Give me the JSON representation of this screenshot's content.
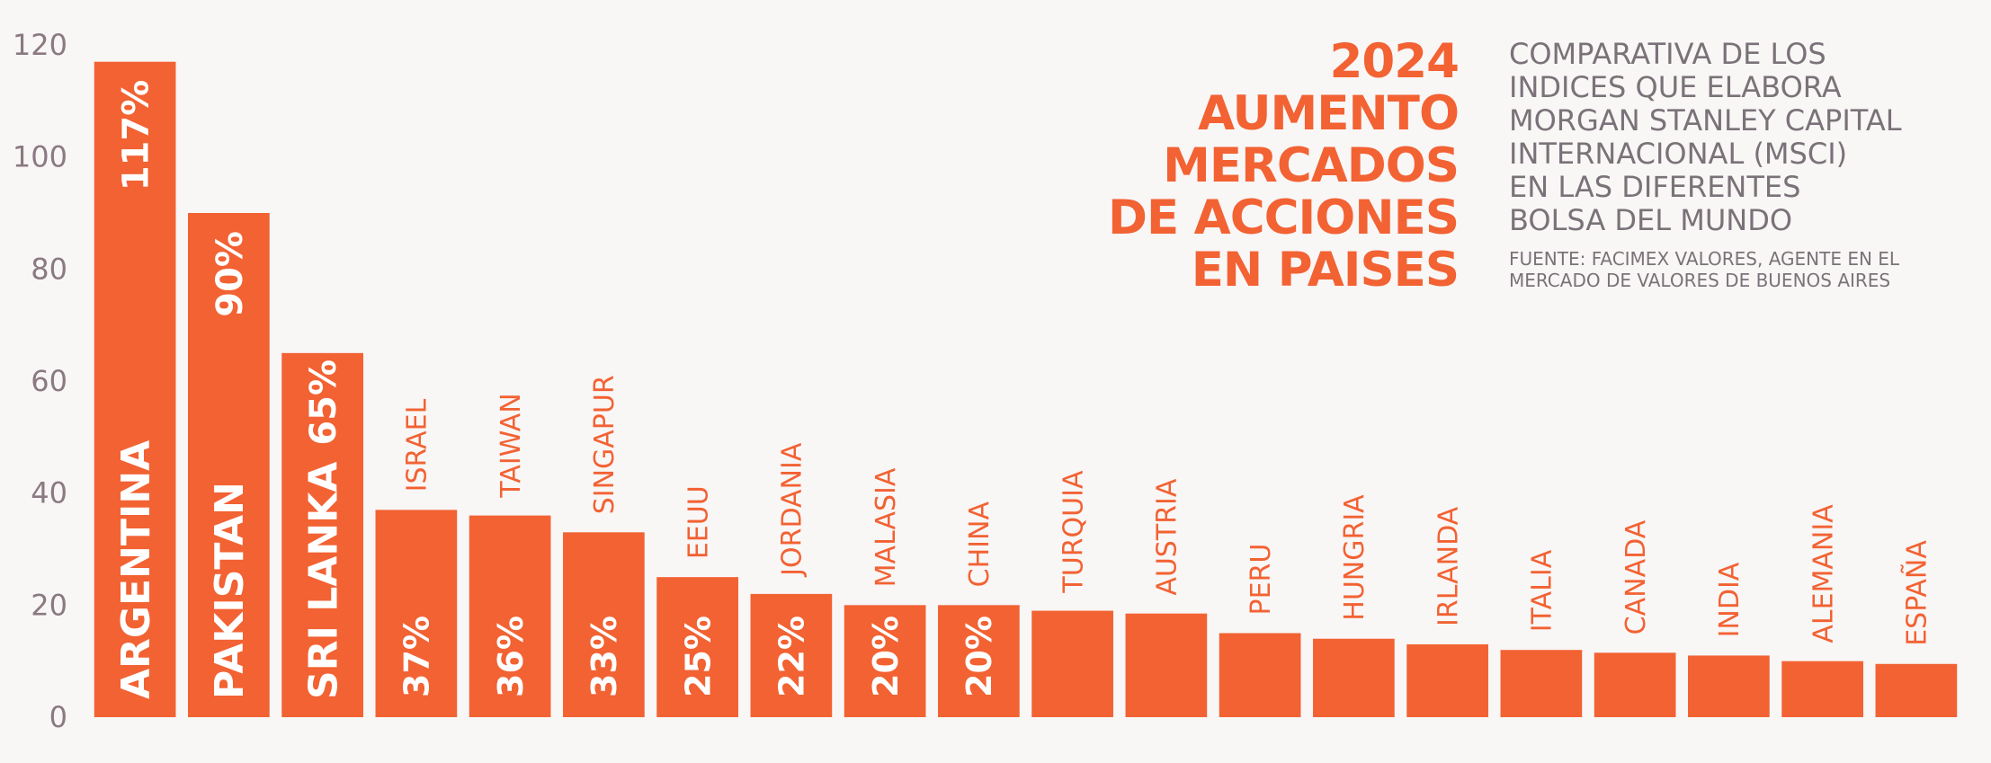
{
  "title_lines": [
    "2024",
    "AUMENTO",
    "MERCADOS",
    "DE ACCIONES",
    "EN PAISES"
  ],
  "description_lines": [
    "COMPARATIVA DE LOS",
    "INDICES QUE ELABORA",
    "MORGAN STANLEY CAPITAL",
    "INTERNACIONAL (MSCI)",
    "EN LAS DIFERENTES",
    "BOLSA DEL MUNDO"
  ],
  "source_lines": [
    "FUENTE: FACIMEX VALORES, AGENTE EN EL",
    "MERCADO DE VALORES DE BUENOS AIRES"
  ],
  "colors": {
    "bar": "#f26233",
    "background": "#f9f6f6",
    "axis_text": "#8a7a82",
    "description_text": "#7a7278"
  },
  "chart_data": {
    "type": "bar",
    "orientation": "vertical",
    "categories": [
      "ARGENTINA",
      "PAKISTAN",
      "SRI LANKA",
      "ISRAEL",
      "TAIWAN",
      "SINGAPUR",
      "EEUU",
      "JORDANIA",
      "MALASIA",
      "CHINA",
      "TURQUIA",
      "AUSTRIA",
      "PERU",
      "HUNGRIA",
      "IRLANDA",
      "ITALIA",
      "CANADA",
      "INDIA",
      "ALEMANIA",
      "ESPAÑA"
    ],
    "values": [
      117,
      90,
      65,
      37,
      36,
      33,
      25,
      22,
      20,
      20,
      19,
      18.5,
      15,
      14,
      13,
      12,
      11.5,
      11,
      10,
      9.5
    ],
    "data_labels": [
      "117%",
      "90%",
      "65%",
      "37%",
      "36%",
      "33%",
      "25%",
      "22%",
      "20%",
      "20%",
      "",
      "",
      "",
      "",
      "",
      "",
      "",
      "",
      "",
      ""
    ],
    "ylim": [
      0,
      120
    ],
    "yticks": [
      "0",
      "20",
      "40",
      "60",
      "80",
      "100",
      "120"
    ],
    "grid": false,
    "legend": "none"
  }
}
